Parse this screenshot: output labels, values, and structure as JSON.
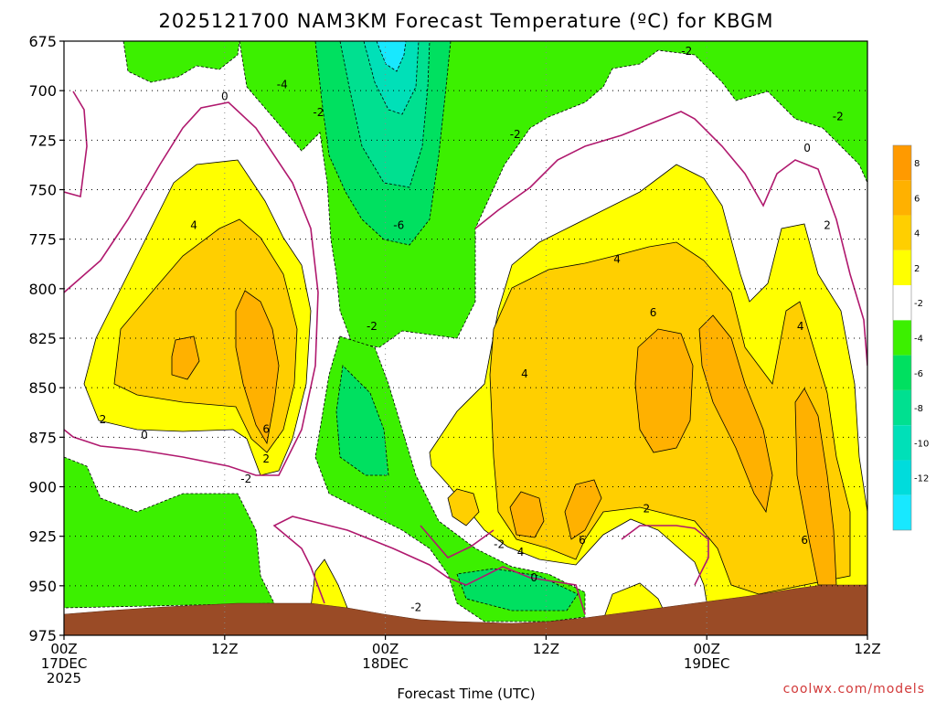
{
  "chart_data": {
    "type": "contour",
    "title": "2025121700 NAM3KM Forecast Temperature (ºC) for KBGM",
    "xlabel": "Forecast Time (UTC)",
    "ylabel": "",
    "credit": "coolwx.com/models",
    "x_ticks": [
      {
        "hours": 0,
        "lines": [
          "00Z",
          "17DEC",
          "2025"
        ]
      },
      {
        "hours": 12,
        "lines": [
          "12Z"
        ]
      },
      {
        "hours": 24,
        "lines": [
          "00Z",
          "18DEC"
        ]
      },
      {
        "hours": 36,
        "lines": [
          "12Z"
        ]
      },
      {
        "hours": 48,
        "lines": [
          "00Z",
          "19DEC"
        ]
      },
      {
        "hours": 60,
        "lines": [
          "12Z"
        ]
      }
    ],
    "xlim_hours": [
      0,
      60
    ],
    "y_ticks": [
      675,
      700,
      725,
      750,
      775,
      800,
      825,
      850,
      875,
      900,
      925,
      950,
      975
    ],
    "ylim": [
      975,
      675
    ],
    "grid": "dotted",
    "colorbar": {
      "levels": [
        8,
        6,
        4,
        2,
        -2,
        -4,
        -6,
        -8,
        -10,
        -12
      ],
      "colors": [
        "#ff9a00",
        "#ffb100",
        "#ffcf00",
        "#ffff00",
        "#ffffff",
        "#3cf000",
        "#00e060",
        "#00e090",
        "#00e0b8",
        "#00dcdc",
        "#18e8ff"
      ]
    },
    "contour_labels": [
      {
        "hours": 12.0,
        "p": 703,
        "text": "0"
      },
      {
        "hours": 16.3,
        "p": 697,
        "text": "-4"
      },
      {
        "hours": 19.0,
        "p": 711,
        "text": "-2"
      },
      {
        "hours": 9.7,
        "p": 768,
        "text": "4"
      },
      {
        "hours": 2.9,
        "p": 866,
        "text": "2"
      },
      {
        "hours": 6.0,
        "p": 874,
        "text": "0"
      },
      {
        "hours": 15.1,
        "p": 871,
        "text": "6"
      },
      {
        "hours": 15.1,
        "p": 886,
        "text": "2"
      },
      {
        "hours": 13.6,
        "p": 896,
        "text": "-2"
      },
      {
        "hours": 23.0,
        "p": 819,
        "text": "-2"
      },
      {
        "hours": 25.0,
        "p": 768,
        "text": "-6"
      },
      {
        "hours": 33.7,
        "p": 722,
        "text": "-2"
      },
      {
        "hours": 46.5,
        "p": 680,
        "text": "-2"
      },
      {
        "hours": 55.5,
        "p": 729,
        "text": "0"
      },
      {
        "hours": 57.8,
        "p": 713,
        "text": "-2"
      },
      {
        "hours": 57.0,
        "p": 768,
        "text": "2"
      },
      {
        "hours": 41.3,
        "p": 785,
        "text": "4"
      },
      {
        "hours": 34.4,
        "p": 843,
        "text": "4"
      },
      {
        "hours": 44.0,
        "p": 812,
        "text": "6"
      },
      {
        "hours": 55.0,
        "p": 819,
        "text": "4"
      },
      {
        "hours": 32.5,
        "p": 929,
        "text": "-2"
      },
      {
        "hours": 34.1,
        "p": 933,
        "text": "4"
      },
      {
        "hours": 35.1,
        "p": 946,
        "text": "0"
      },
      {
        "hours": 38.7,
        "p": 927,
        "text": "6"
      },
      {
        "hours": 43.5,
        "p": 911,
        "text": "2"
      },
      {
        "hours": 55.3,
        "p": 927,
        "text": "6"
      },
      {
        "hours": 26.3,
        "p": 961,
        "text": "-2"
      }
    ]
  }
}
